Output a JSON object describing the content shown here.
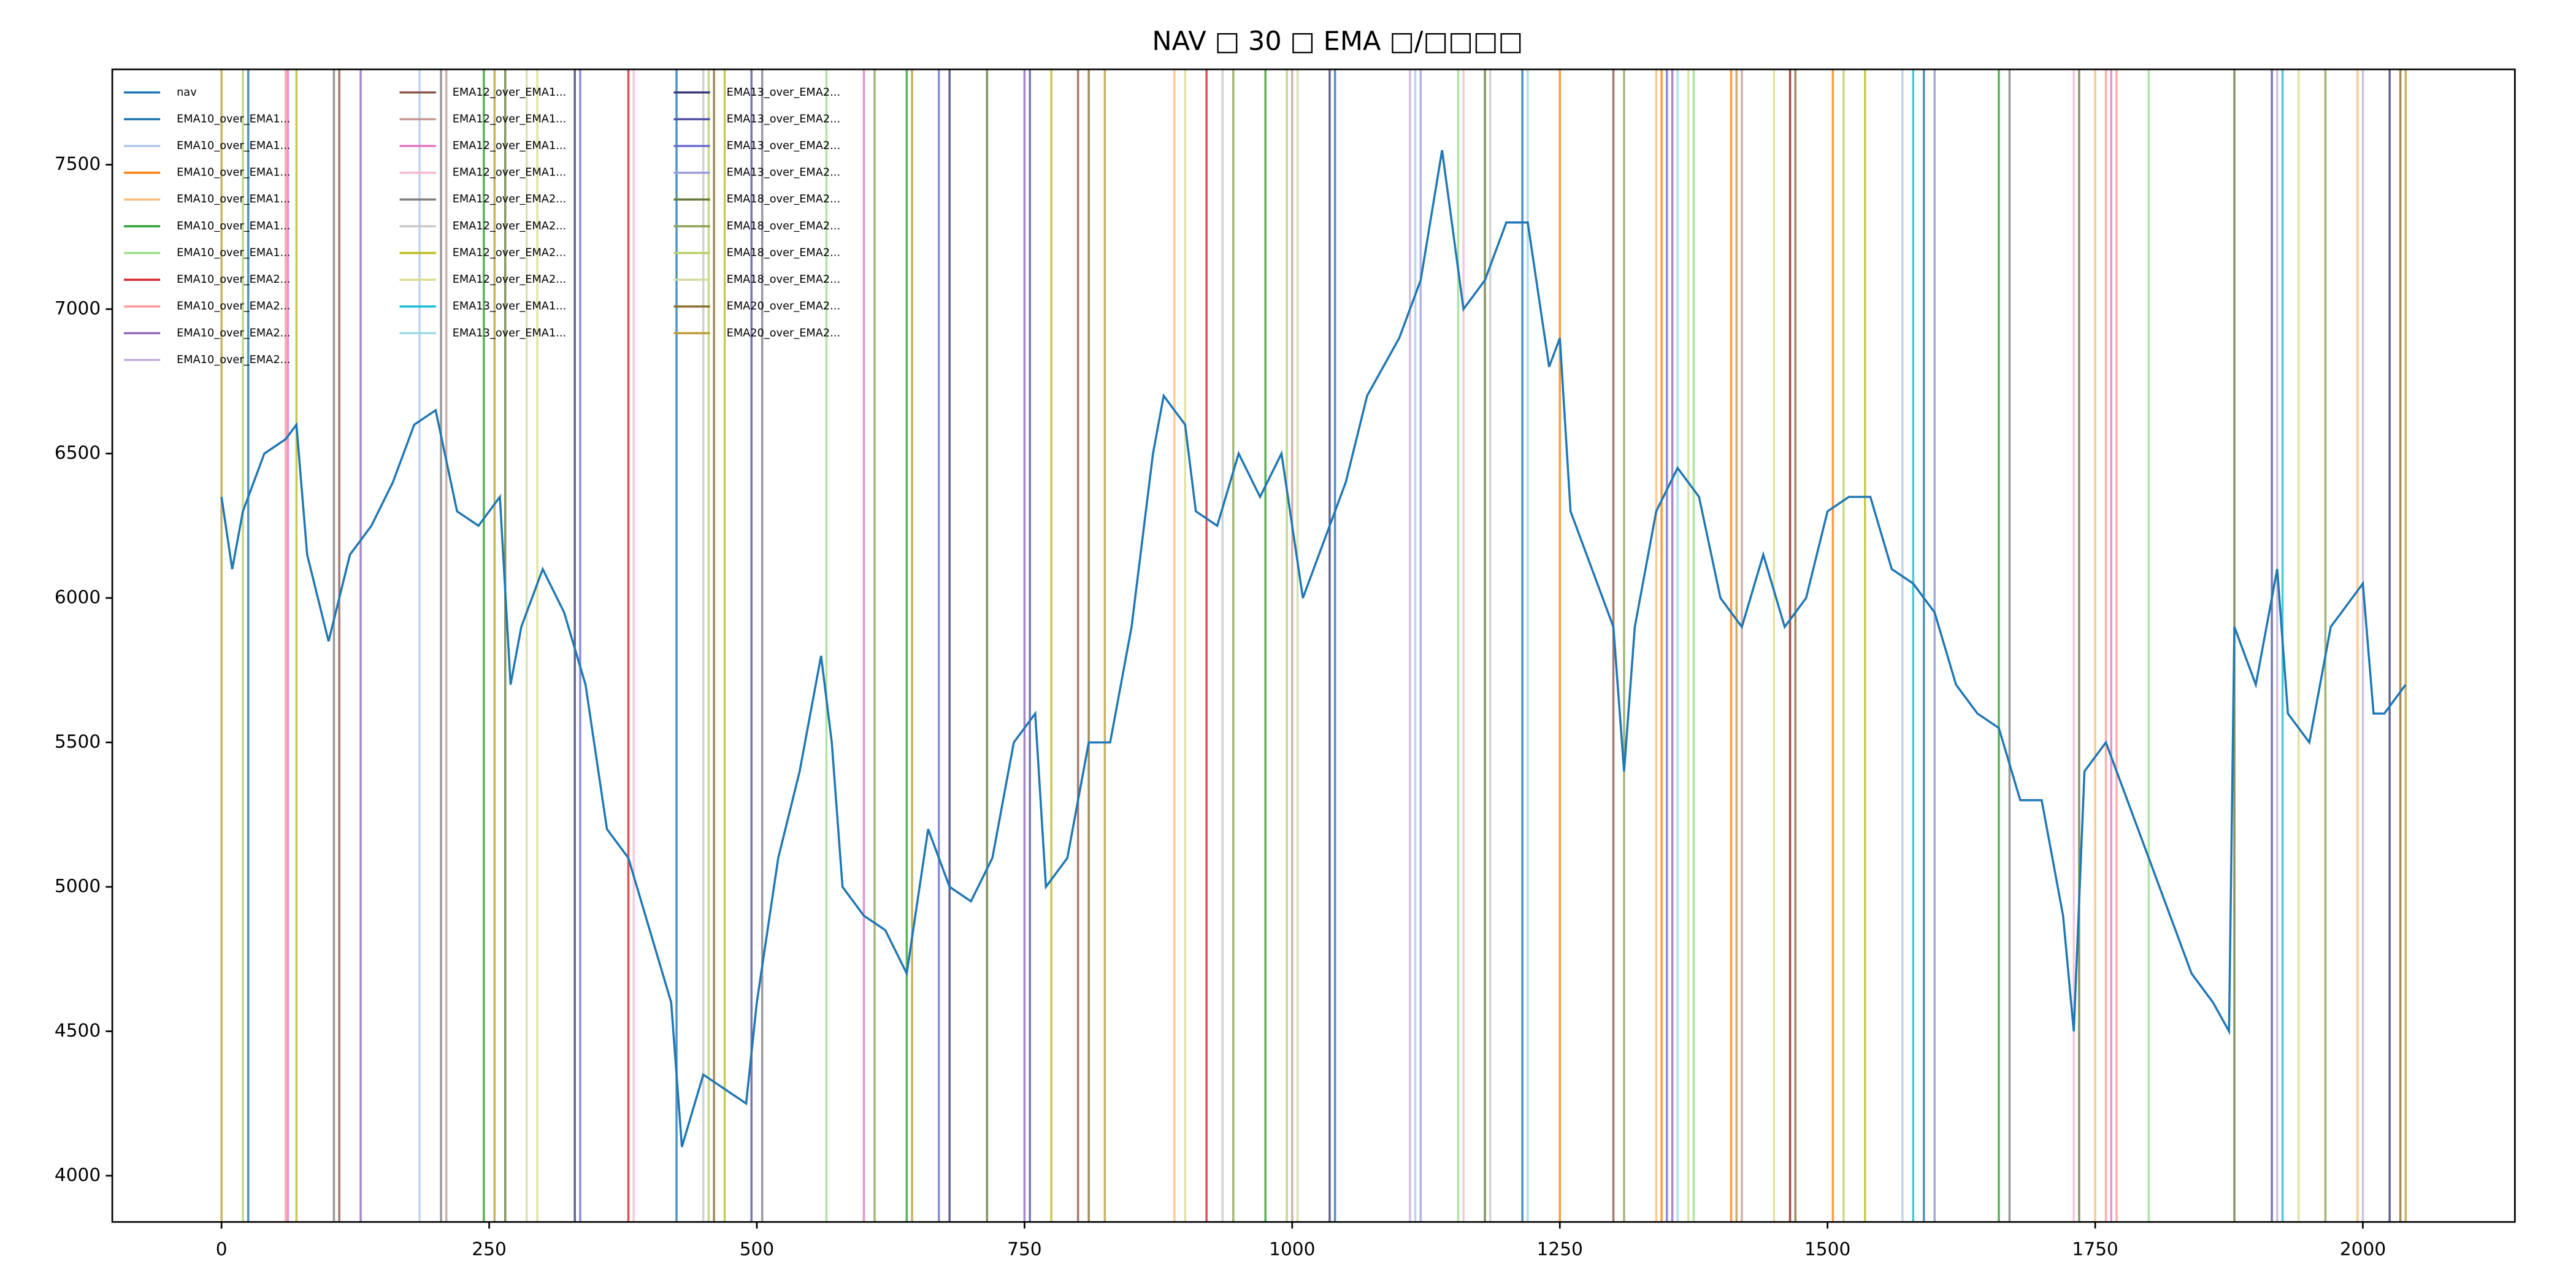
{
  "chart_data": {
    "type": "line",
    "title": "NAV □ 30 □ EMA □/□□□□",
    "xlim": [
      -102,
      2142
    ],
    "xticks": [
      0,
      250,
      500,
      750,
      1000,
      1250,
      1500,
      1750,
      2000
    ],
    "ylim": [
      3840,
      7830
    ],
    "yticks": [
      4000,
      4500,
      5000,
      5500,
      6000,
      6500,
      7000,
      7500
    ],
    "legend": "upper left",
    "series": [
      {
        "name": "nav",
        "color": "#1f77b4",
        "x": [
          0,
          10,
          20,
          40,
          60,
          70,
          80,
          100,
          120,
          140,
          160,
          180,
          200,
          220,
          240,
          260,
          270,
          280,
          300,
          320,
          340,
          360,
          380,
          400,
          420,
          430,
          450,
          470,
          490,
          500,
          520,
          540,
          560,
          570,
          580,
          600,
          620,
          640,
          660,
          680,
          700,
          720,
          740,
          760,
          770,
          790,
          810,
          830,
          850,
          870,
          880,
          900,
          910,
          930,
          950,
          970,
          990,
          1010,
          1030,
          1050,
          1070,
          1100,
          1120,
          1140,
          1160,
          1180,
          1200,
          1220,
          1240,
          1250,
          1260,
          1280,
          1300,
          1310,
          1320,
          1340,
          1360,
          1380,
          1400,
          1420,
          1440,
          1460,
          1480,
          1500,
          1520,
          1540,
          1560,
          1580,
          1600,
          1620,
          1640,
          1660,
          1680,
          1700,
          1720,
          1730,
          1740,
          1760,
          1780,
          1800,
          1820,
          1840,
          1860,
          1875,
          1880,
          1900,
          1920,
          1930,
          1950,
          1970,
          1990,
          2000,
          2010,
          2020,
          2040
        ],
        "values": [
          6350,
          6100,
          6300,
          6500,
          6550,
          6600,
          6150,
          5850,
          6150,
          6250,
          6400,
          6600,
          6650,
          6300,
          6250,
          6350,
          5700,
          5900,
          6100,
          5950,
          5700,
          5200,
          5100,
          4850,
          4600,
          4100,
          4350,
          4300,
          4250,
          4600,
          5100,
          5400,
          5800,
          5500,
          5000,
          4900,
          4850,
          4700,
          5200,
          5000,
          4950,
          5100,
          5500,
          5600,
          5000,
          5100,
          5500,
          5500,
          5900,
          6500,
          6700,
          6600,
          6300,
          6250,
          6500,
          6350,
          6500,
          6000,
          6200,
          6400,
          6700,
          6900,
          7100,
          7550,
          7000,
          7100,
          7300,
          7300,
          6800,
          6900,
          6300,
          6100,
          5900,
          5400,
          5900,
          6300,
          6450,
          6350,
          6000,
          5900,
          6150,
          5900,
          6000,
          6300,
          6350,
          6350,
          6100,
          6050,
          5950,
          5700,
          5600,
          5550,
          5300,
          5300,
          4900,
          4500,
          5400,
          5500,
          5300,
          5100,
          4900,
          4700,
          4600,
          4500,
          5900,
          5700,
          6100,
          5600,
          5500,
          5900,
          6000,
          6050,
          5600,
          5600,
          5700
        ]
      },
      {
        "name": "EMA10_over_EMA1...",
        "color": "#1f77b4",
        "x": [
          25,
          425,
          1040,
          1215,
          1590
        ]
      },
      {
        "name": "EMA10_over_EMA1...",
        "color": "#aec7e8",
        "x": [
          185,
          1115,
          1570,
          1600
        ]
      },
      {
        "name": "EMA10_over_EMA1...",
        "color": "#ff7f0e",
        "x": [
          1250,
          1345,
          1410,
          1505
        ]
      },
      {
        "name": "EMA10_over_EMA1...",
        "color": "#ffbb78",
        "x": [
          890,
          1340,
          1750,
          1995
        ]
      },
      {
        "name": "EMA10_over_EMA1...",
        "color": "#2ca02c",
        "x": [
          245,
          640,
          975,
          1660
        ]
      },
      {
        "name": "EMA10_over_EMA1...",
        "color": "#98df8a",
        "x": [
          565,
          1155,
          1375,
          1800
        ]
      },
      {
        "name": "EMA10_over_EMA2...",
        "color": "#d62728",
        "x": [
          380,
          920,
          1465
        ]
      },
      {
        "name": "EMA10_over_EMA2...",
        "color": "#ff9896",
        "x": [
          60,
          1760,
          1770
        ]
      },
      {
        "name": "EMA10_over_EMA2...",
        "color": "#9467bd",
        "x": [
          130,
          750,
          1355
        ]
      },
      {
        "name": "EMA10_over_EMA2...",
        "color": "#c5b0d5",
        "x": [
          1110,
          1920,
          2000
        ]
      },
      {
        "name": "EMA12_over_EMA1...",
        "color": "#8c564b",
        "x": [
          110,
          800,
          1300,
          1465
        ]
      },
      {
        "name": "EMA12_over_EMA1...",
        "color": "#c49c94",
        "x": [
          210,
          1000,
          1420
        ]
      },
      {
        "name": "EMA12_over_EMA1...",
        "color": "#e377c2",
        "x": [
          62,
          600,
          1765
        ]
      },
      {
        "name": "EMA12_over_EMA1...",
        "color": "#f7b6d2",
        "x": [
          385,
          1160,
          1730
        ]
      },
      {
        "name": "EMA12_over_EMA2...",
        "color": "#7f7f7f",
        "x": [
          105,
          205,
          505,
          1670
        ]
      },
      {
        "name": "EMA12_over_EMA2...",
        "color": "#c7c7c7",
        "x": [
          450,
          935,
          1185
        ]
      },
      {
        "name": "EMA12_over_EMA2...",
        "color": "#bcbd22",
        "x": [
          70,
          470,
          775,
          1535
        ]
      },
      {
        "name": "EMA12_over_EMA2...",
        "color": "#dbdb8d",
        "x": [
          295,
          900,
          1450,
          1940
        ]
      },
      {
        "name": "EMA13_over_EMA1...",
        "color": "#17becf",
        "x": [
          1580,
          1925
        ]
      },
      {
        "name": "EMA13_over_EMA1...",
        "color": "#9edae5",
        "x": [
          1220,
          1360
        ]
      },
      {
        "name": "EMA13_over_EMA2...",
        "color": "#393b79",
        "x": [
          330,
          680,
          1035,
          2025
        ]
      },
      {
        "name": "EMA13_over_EMA2...",
        "color": "#5254a3",
        "x": [
          495,
          755,
          1915
        ]
      },
      {
        "name": "EMA13_over_EMA2...",
        "color": "#6b6ecf",
        "x": [
          335,
          670,
          1350
        ]
      },
      {
        "name": "EMA13_over_EMA2...",
        "color": "#9c9ede",
        "x": [
          1120,
          1600
        ]
      },
      {
        "name": "EMA18_over_EMA2...",
        "color": "#637939",
        "x": [
          265,
          715,
          1180,
          1735,
          1880
        ]
      },
      {
        "name": "EMA18_over_EMA2...",
        "color": "#8ca252",
        "x": [
          610,
          945,
          1310,
          1965
        ]
      },
      {
        "name": "EMA18_over_EMA2...",
        "color": "#b5cf6b",
        "x": [
          20,
          455,
          995,
          1515
        ]
      },
      {
        "name": "EMA18_over_EMA2...",
        "color": "#cedb9c",
        "x": [
          285,
          1005,
          1370
        ]
      },
      {
        "name": "EMA20_over_EMA2...",
        "color": "#8c6d31",
        "x": [
          460,
          810,
          1470,
          2035
        ]
      },
      {
        "name": "EMA20_over_EMA2...",
        "color": "#bd9e39",
        "x": [
          0,
          255,
          645,
          825,
          1415,
          2040
        ]
      }
    ]
  }
}
